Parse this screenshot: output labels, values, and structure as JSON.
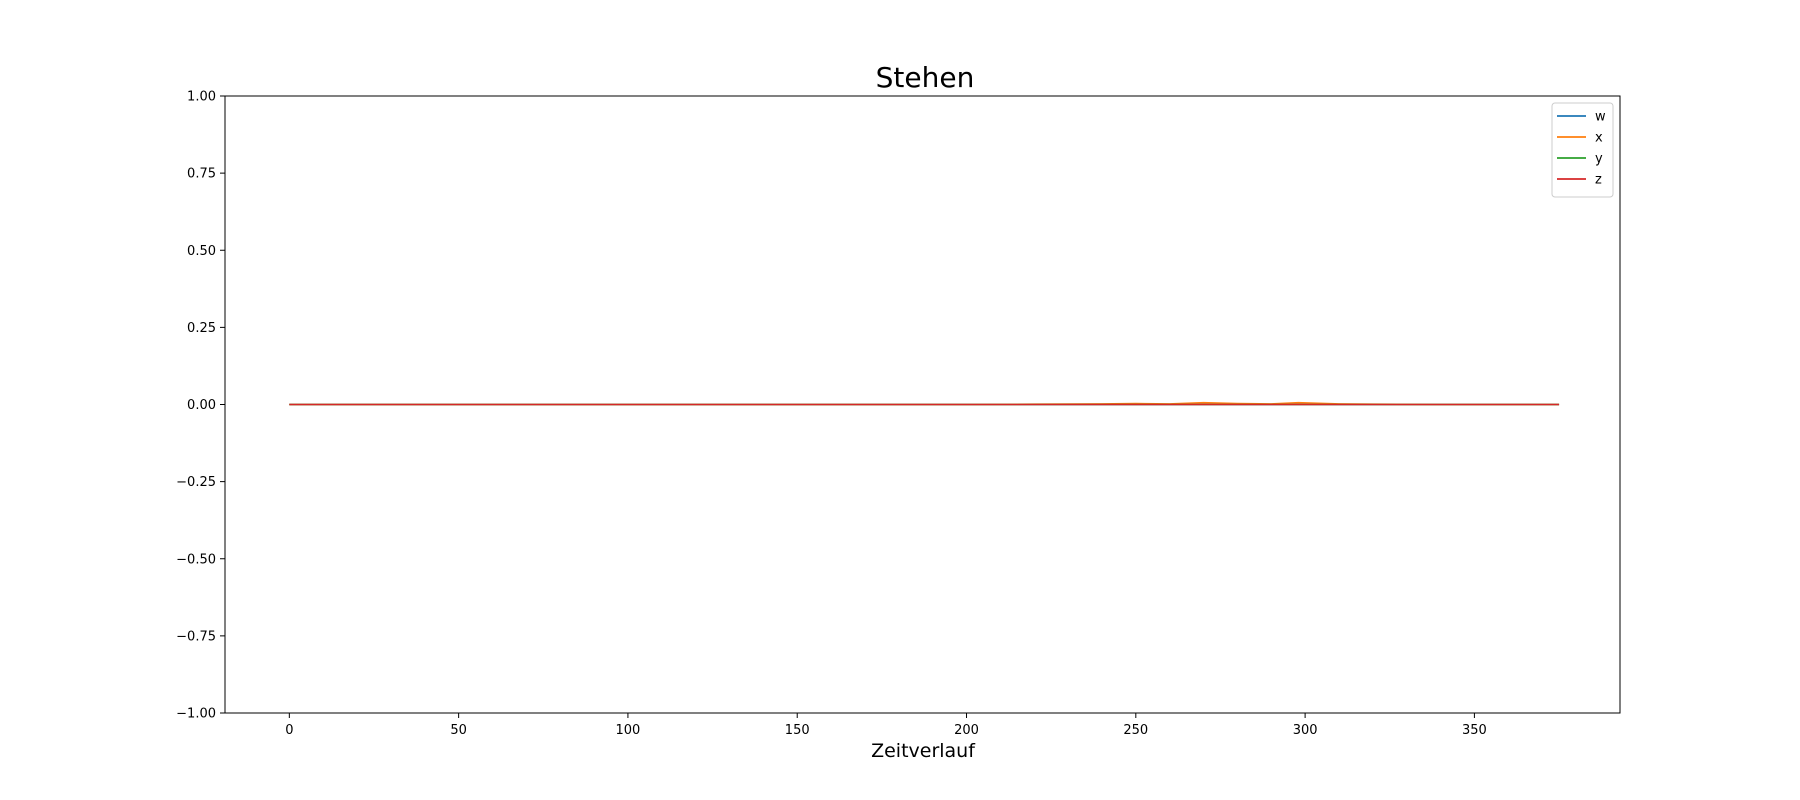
{
  "chart_data": {
    "type": "line",
    "title": "Stehen",
    "xlabel": "Zeitverlauf",
    "ylabel": "",
    "xlim": [
      -19,
      393
    ],
    "ylim": [
      -1.0,
      1.0
    ],
    "xticks": [
      0,
      50,
      100,
      150,
      200,
      250,
      300,
      350
    ],
    "xtick_labels": [
      "0",
      "50",
      "100",
      "150",
      "200",
      "250",
      "300",
      "350"
    ],
    "yticks": [
      1.0,
      0.75,
      0.5,
      0.25,
      0.0,
      -0.25,
      -0.5,
      -0.75,
      -1.0
    ],
    "ytick_labels": [
      "1.00",
      "0.75",
      "0.50",
      "0.25",
      "0.00",
      "−0.25",
      "−0.50",
      "−0.75",
      "−1.00"
    ],
    "grid": false,
    "legend_position": "top-right",
    "x": [
      0,
      50,
      100,
      150,
      200,
      220,
      240,
      250,
      260,
      270,
      280,
      290,
      298,
      310,
      320,
      340,
      375
    ],
    "series": [
      {
        "name": "w",
        "color": "#1f77b4",
        "values": [
          0,
          0,
          0,
          0,
          0,
          0,
          0,
          0,
          0,
          0,
          0,
          0,
          0,
          0,
          0,
          0,
          0
        ]
      },
      {
        "name": "x",
        "color": "#ff7f0e",
        "values": [
          0,
          0,
          0,
          0,
          0,
          0.001,
          0.002,
          0.003,
          0.002,
          0.006,
          0.003,
          0.002,
          0.006,
          0.002,
          0.001,
          0,
          0
        ]
      },
      {
        "name": "y",
        "color": "#2ca02c",
        "values": [
          0,
          0,
          0,
          0,
          0,
          0,
          0,
          0,
          0,
          0,
          0,
          0,
          0,
          0,
          0,
          0,
          0
        ]
      },
      {
        "name": "z",
        "color": "#d62728",
        "values": [
          0,
          0,
          0,
          0,
          0,
          0,
          0,
          0,
          0,
          0,
          0,
          0,
          0,
          0,
          0,
          0,
          0
        ]
      }
    ]
  }
}
